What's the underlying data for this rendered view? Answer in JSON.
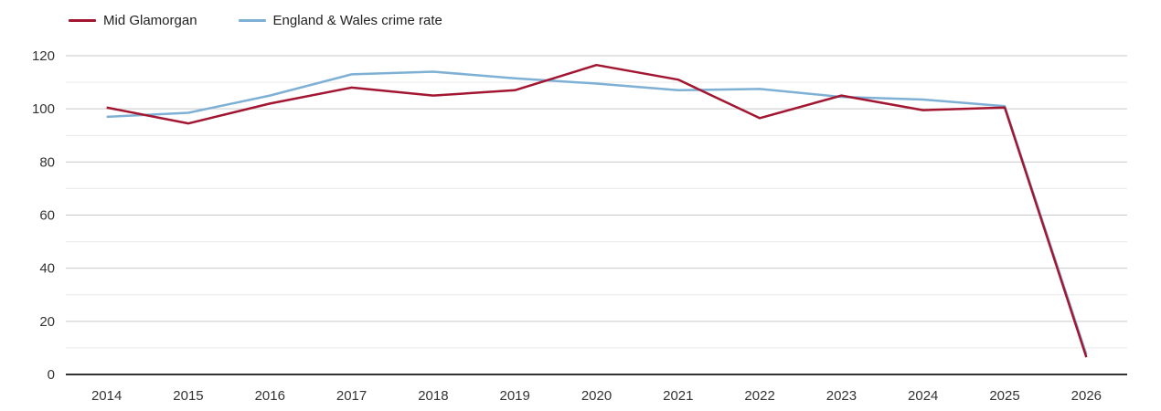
{
  "legend": {
    "items": [
      {
        "label": "Mid Glamorgan",
        "color": "#a21631"
      },
      {
        "label": "England & Wales crime rate",
        "color": "#7eb0d5"
      }
    ]
  },
  "chart_data": {
    "type": "line",
    "x": [
      "2014",
      "2015",
      "2016",
      "2017",
      "2018",
      "2019",
      "2020",
      "2021",
      "2022",
      "2023",
      "2024",
      "2025",
      "2026"
    ],
    "series": [
      {
        "name": "Mid Glamorgan",
        "color": "#a21631",
        "values": [
          100.5,
          94.5,
          102,
          108,
          105,
          107,
          116.5,
          111,
          96.5,
          105,
          99.5,
          100.5,
          6.5
        ]
      },
      {
        "name": "England & Wales crime rate",
        "color": "#7eb0d5",
        "values": [
          97,
          98.5,
          105,
          113,
          114,
          111.5,
          109.5,
          107,
          107.5,
          104.5,
          103.5,
          101,
          7.5
        ]
      }
    ],
    "title": "",
    "xlabel": "",
    "ylabel": "",
    "ylim": [
      0,
      120
    ],
    "y_tick_step": 20,
    "y_minor_step": 10,
    "y_tick_labels": [
      "0",
      "20",
      "40",
      "60",
      "80",
      "100",
      "120"
    ],
    "grid": true,
    "legend_position": "top-left",
    "colors": {
      "axis_line": "#333333",
      "major_grid": "#c9c9c9",
      "minor_grid": "#e9e9e9",
      "tick_label": "#333333"
    }
  }
}
